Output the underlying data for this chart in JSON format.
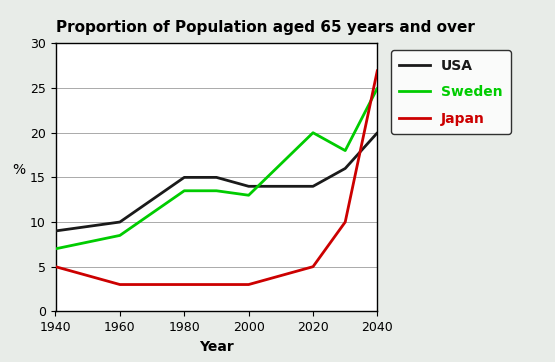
{
  "title": "Proportion of Population aged 65 years and over",
  "xlabel": "Year",
  "ylabel": "%",
  "years": [
    1940,
    1960,
    1980,
    1990,
    2000,
    2020,
    2030,
    2040
  ],
  "usa": [
    9,
    10,
    15,
    15,
    14,
    14,
    16,
    20
  ],
  "sweden": [
    7,
    8.5,
    13.5,
    13.5,
    13,
    20,
    18,
    25
  ],
  "japan": [
    5,
    3,
    3,
    3,
    3,
    5,
    10,
    27
  ],
  "usa_color": "#1a1a1a",
  "sweden_color": "#00cc00",
  "japan_color": "#cc0000",
  "ylim": [
    0,
    30
  ],
  "xlim": [
    1940,
    2040
  ],
  "xticks": [
    1940,
    1960,
    1980,
    2000,
    2020,
    2040
  ],
  "yticks": [
    0,
    5,
    10,
    15,
    20,
    25,
    30
  ],
  "plot_bg": "#ffffff",
  "fig_bg": "#e8ece8",
  "title_fontsize": 11,
  "axis_label_fontsize": 10,
  "tick_fontsize": 9,
  "legend_fontsize": 10,
  "linewidth": 2.0
}
